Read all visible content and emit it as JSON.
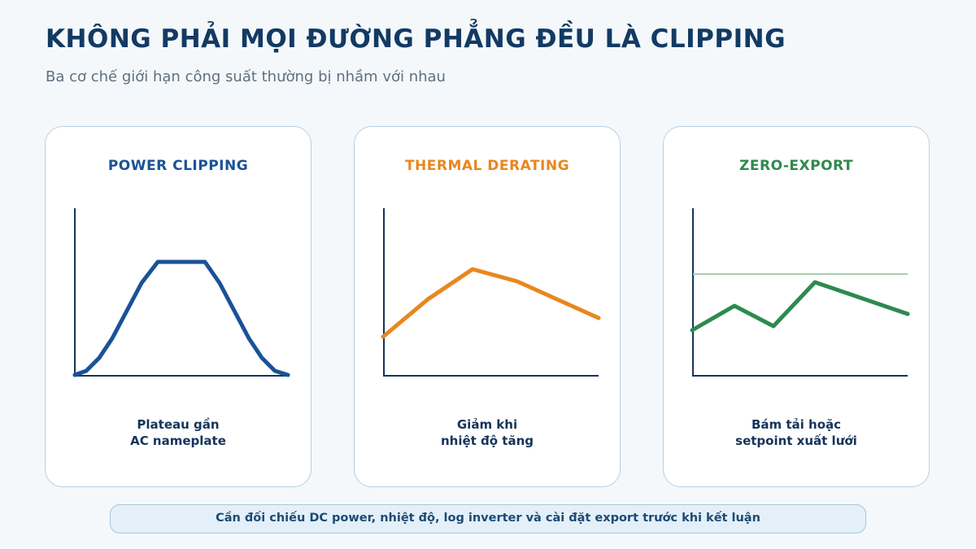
{
  "header": {
    "title": "KHÔNG PHẢI MỌI ĐƯỜNG PHẲNG ĐỀU LÀ CLIPPING",
    "subtitle": "Ba cơ chế giới hạn công suất thường bị nhầm với nhau"
  },
  "cards": [
    {
      "title": "POWER CLIPPING",
      "color": "#1a5296",
      "caption_lines": [
        "Plateau gần",
        "AC nameplate"
      ]
    },
    {
      "title": "THERMAL DERATING",
      "color": "#e8871f",
      "caption_lines": [
        "Giảm khi",
        "nhiệt độ tăng"
      ]
    },
    {
      "title": "ZERO-EXPORT",
      "color": "#2d8a4e",
      "caption_lines": [
        "Bám tải hoặc",
        "setpoint xuất lưới"
      ]
    }
  ],
  "colors": {
    "axis": "#14345a",
    "setpoint_line": "#a8cdb0",
    "card_border": "#b9cfe0"
  },
  "footer": {
    "note": "Cần đối chiếu DC power, nhiệt độ, log inverter và cài đặt export trước khi kết luận"
  }
}
